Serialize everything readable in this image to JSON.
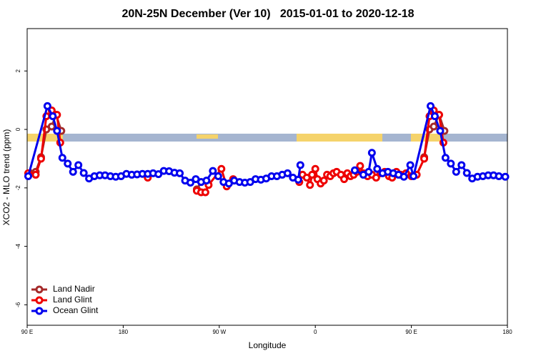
{
  "chart_data": {
    "type": "line",
    "title": "20N-25N December (Ver 10)   2015-01-01 to 2020-12-18",
    "x_label": "Longitude",
    "y_label": "XCO2 - MLO trend (ppm)",
    "xlim": [
      90,
      540
    ],
    "ylim": [
      -6.7,
      3.45
    ],
    "xticks": [
      {
        "value": 90,
        "label": "90 E"
      },
      180,
      {
        "value": 270,
        "label": "90 W"
      },
      {
        "value": 360,
        "label": "0"
      },
      {
        "value": 450,
        "label": "90 E"
      },
      {
        "value": 540,
        "label": "180"
      }
    ],
    "yticks": [
      -6,
      -4,
      -2,
      0,
      2
    ],
    "legend": "bottomleft",
    "series": [
      {
        "name": "Land Nadir",
        "color": "#a52a2a",
        "x": [
          93,
          98,
          103,
          108,
          113,
          117,
          122,
          180,
          249,
          253,
          300,
          462,
          467,
          471,
          476,
          481
        ],
        "values": [
          -1.5,
          -1.45,
          -0.95,
          0.0,
          0.1,
          0.5,
          -0.05,
          null,
          -2.05,
          -1.8,
          null,
          -0.95,
          0.0,
          0.1,
          0.5,
          -0.05
        ]
      },
      {
        "name": "Land Glint",
        "color": "#ee0000",
        "x": [
          91,
          98,
          103,
          108,
          113,
          118,
          121,
          160,
          203,
          230,
          249,
          253,
          257,
          260,
          272,
          277,
          283,
          320,
          345,
          348,
          352,
          355,
          357,
          360,
          362,
          365,
          368,
          371,
          374,
          377,
          380,
          384,
          387,
          390,
          393,
          396,
          399,
          402,
          405,
          409,
          413,
          417,
          421,
          425,
          429,
          432,
          436,
          440,
          445,
          450,
          455,
          462,
          467,
          471,
          476,
          480
        ],
        "values": [
          -1.5,
          -1.55,
          -1.0,
          0.45,
          0.65,
          0.5,
          -0.45,
          null,
          -1.65,
          null,
          -2.1,
          -2.15,
          -2.15,
          -1.9,
          -1.35,
          -1.95,
          -1.7,
          null,
          -1.8,
          -1.55,
          -1.65,
          -1.9,
          -1.55,
          -1.35,
          -1.7,
          -1.85,
          -1.75,
          -1.55,
          -1.6,
          -1.5,
          -1.45,
          -1.55,
          -1.7,
          -1.5,
          -1.6,
          -1.55,
          -1.45,
          -1.25,
          -1.5,
          -1.6,
          -1.55,
          -1.65,
          -1.5,
          -1.45,
          -1.6,
          -1.65,
          -1.45,
          -1.55,
          -1.5,
          -1.6,
          -1.55,
          -1.0,
          0.45,
          0.65,
          0.5,
          -0.45
        ]
      },
      {
        "name": "Ocean Glint",
        "color": "#0000ee",
        "x": [
          91,
          109,
          114,
          118,
          123,
          128,
          133,
          138,
          143,
          148,
          153,
          158,
          163,
          168,
          173,
          178,
          183,
          188,
          193,
          198,
          203,
          208,
          213,
          218,
          223,
          228,
          233,
          238,
          243,
          248,
          253,
          258,
          264,
          269,
          274,
          279,
          284,
          289,
          294,
          299,
          304,
          309,
          314,
          319,
          324,
          329,
          334,
          339,
          344,
          346,
          370,
          397,
          405,
          410,
          413,
          418,
          423,
          428,
          433,
          438,
          443,
          449,
          452,
          468,
          472,
          477,
          482,
          487,
          492,
          497,
          502,
          507,
          512,
          517,
          522,
          527,
          532,
          538
        ],
        "values": [
          -1.6,
          0.8,
          0.45,
          -0.05,
          -0.97,
          -1.17,
          -1.45,
          -1.22,
          -1.49,
          -1.68,
          -1.6,
          -1.57,
          -1.57,
          -1.6,
          -1.62,
          -1.6,
          -1.52,
          -1.55,
          -1.54,
          -1.52,
          -1.52,
          -1.5,
          -1.53,
          -1.42,
          -1.43,
          -1.48,
          -1.5,
          -1.75,
          -1.82,
          -1.7,
          -1.8,
          -1.75,
          -1.42,
          -1.6,
          -1.8,
          -1.85,
          -1.75,
          -1.8,
          -1.82,
          -1.8,
          -1.7,
          -1.72,
          -1.68,
          -1.6,
          -1.6,
          -1.55,
          -1.5,
          -1.65,
          -1.72,
          -1.22,
          null,
          -1.4,
          -1.55,
          -1.45,
          -0.8,
          -1.35,
          -1.5,
          -1.45,
          -1.5,
          -1.55,
          -1.62,
          -1.22,
          -1.6,
          0.8,
          0.45,
          -0.05,
          -0.97,
          -1.17,
          -1.45,
          -1.22,
          -1.49,
          -1.68,
          -1.62,
          -1.6,
          -1.57,
          -1.57,
          -1.6,
          -1.62
        ]
      }
    ]
  }
}
